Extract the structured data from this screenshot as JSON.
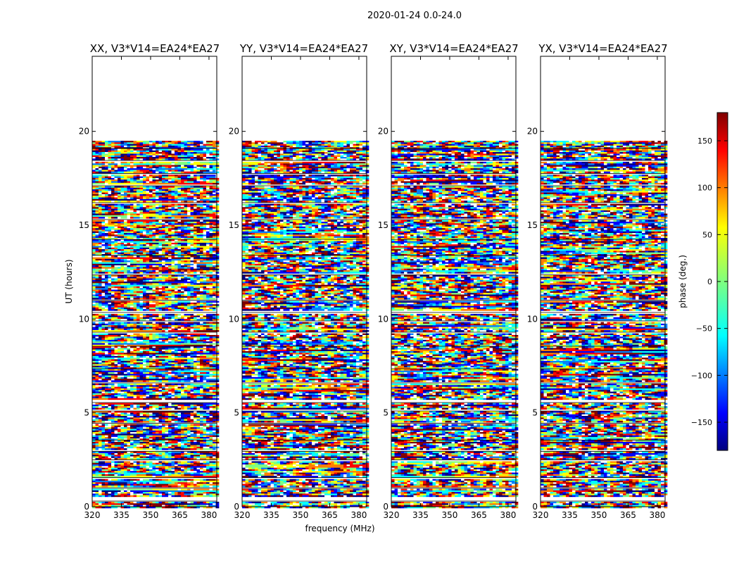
{
  "chart_data": {
    "type": "heatmap",
    "suptitle": "2020-01-24 0.0-24.0",
    "xlabel": "frequency (MHz)",
    "ylabel": "UT (hours)",
    "xlim": [
      320,
      384
    ],
    "ylim": [
      0,
      24
    ],
    "xticks": [
      320,
      335,
      350,
      365,
      380
    ],
    "yticks": [
      0,
      5,
      10,
      15,
      20
    ],
    "data_extent_hours": [
      0.0,
      19.5
    ],
    "panels": [
      {
        "title": "XX, V3*V14=EA24*EA27",
        "pol": "XX"
      },
      {
        "title": "YY, V3*V14=EA24*EA27",
        "pol": "YY"
      },
      {
        "title": "XY, V3*V14=EA24*EA27",
        "pol": "XY"
      },
      {
        "title": "YX, V3*V14=EA24*EA27",
        "pol": "YX"
      }
    ],
    "colorbar": {
      "label": "phase (deg.)",
      "colormap": "jet",
      "range": [
        -180,
        180
      ],
      "ticks": [
        150,
        100,
        50,
        0,
        -50,
        -100,
        -150
      ]
    },
    "flagged_gaps_hours": [
      [
        0.3,
        0.55
      ],
      [
        1.0,
        1.08
      ],
      [
        1.55,
        1.62
      ],
      [
        2.5,
        2.58
      ],
      [
        2.95,
        3.05
      ],
      [
        3.55,
        3.6
      ],
      [
        4.45,
        4.5
      ],
      [
        5.1,
        5.25
      ],
      [
        5.55,
        5.7
      ],
      [
        6.6,
        6.68
      ],
      [
        7.35,
        7.4
      ],
      [
        8.55,
        8.6
      ],
      [
        9.3,
        9.38
      ],
      [
        9.9,
        9.98
      ],
      [
        10.35,
        10.45
      ],
      [
        11.0,
        11.05
      ],
      [
        12.35,
        12.45
      ],
      [
        13.4,
        13.45
      ],
      [
        14.25,
        14.3
      ],
      [
        15.3,
        15.38
      ],
      [
        16.2,
        16.25
      ],
      [
        17.1,
        17.2
      ],
      [
        17.75,
        17.85
      ],
      [
        18.45,
        18.5
      ],
      [
        19.1,
        19.15
      ]
    ]
  },
  "colors": {
    "jet": [
      "#00007f",
      "#0000ff",
      "#007fff",
      "#00ffff",
      "#7fff7f",
      "#ffff00",
      "#ff7f00",
      "#ff0000",
      "#7f0000"
    ]
  }
}
